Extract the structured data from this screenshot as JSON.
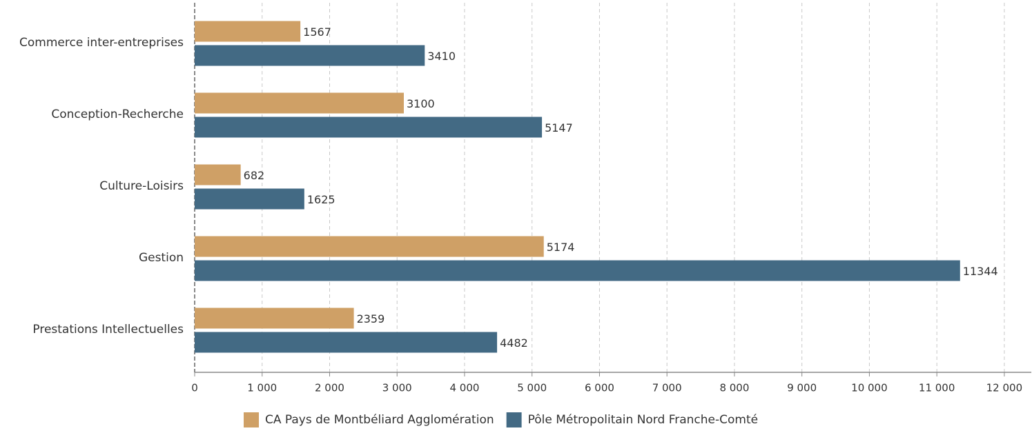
{
  "chart_data": {
    "type": "hbar",
    "categories": [
      "Commerce inter-entreprises",
      "Conception-Recherche",
      "Culture-Loisirs",
      "Gestion",
      "Prestations Intellectuelles"
    ],
    "series": [
      {
        "name": "CA Pays de Montbéliard Agglomération",
        "color": "#cfa066",
        "values": [
          1567,
          3100,
          682,
          5174,
          2359
        ]
      },
      {
        "name": "Pôle Métropolitain Nord Franche-Comté",
        "color": "#436a84",
        "values": [
          3410,
          5147,
          1625,
          11344,
          4482
        ]
      }
    ],
    "xlim": [
      0,
      12400
    ],
    "xticks": [
      0,
      {
        "value": 1000,
        "label": "1 000"
      },
      {
        "value": 2000,
        "label": "2 000"
      },
      {
        "value": 3000,
        "label": "3 000"
      },
      {
        "value": 4000,
        "label": "4 000"
      },
      {
        "value": 5000,
        "label": "5 000"
      },
      {
        "value": 6000,
        "label": "6 000"
      },
      {
        "value": 7000,
        "label": "7 000"
      },
      {
        "value": 8000,
        "label": "8 000"
      },
      {
        "value": 9000,
        "label": "9 000"
      },
      {
        "value": 10000,
        "label": "10 000"
      },
      {
        "value": 11000,
        "label": "11 000"
      },
      {
        "value": 12000,
        "label": "12 000"
      }
    ],
    "grid": true,
    "legend": "bottom"
  }
}
